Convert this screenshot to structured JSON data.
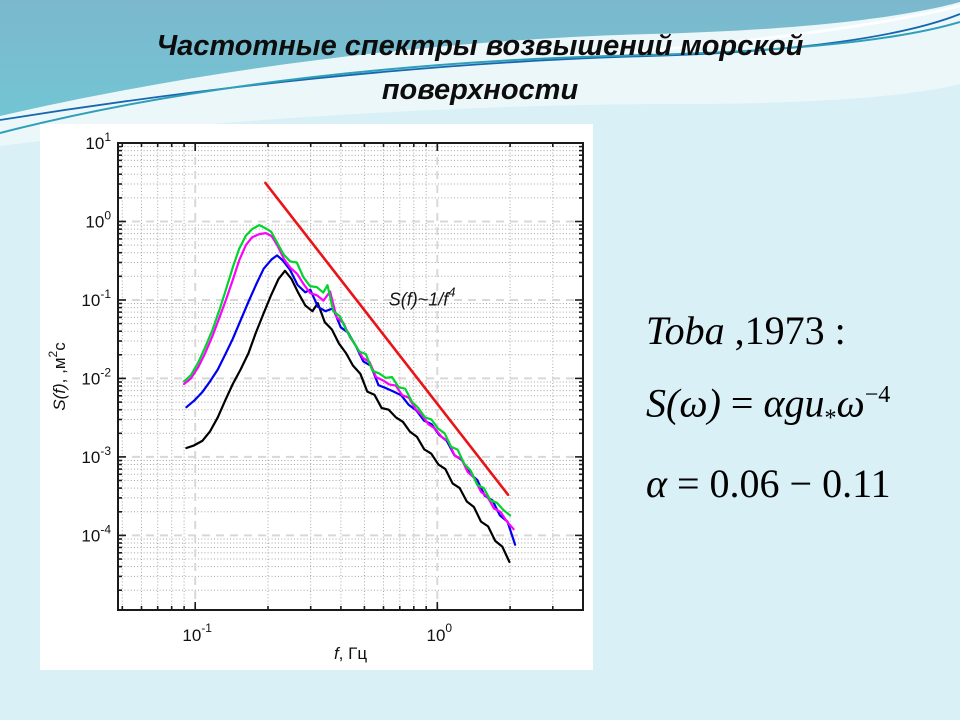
{
  "slide": {
    "title_line1": "Частотные спектры возвышений морской",
    "title_line2": "поверхности"
  },
  "formula": {
    "line1_it": "Toba",
    "line1_rest": " ,1973 :",
    "line2": {
      "lhs": "S(ω)",
      "eq": " = ",
      "coef": "αgu",
      "sub": "*",
      "base": "ω",
      "sup": "−4"
    },
    "line3": {
      "sym": "α",
      "rest": " = 0.06 − 0.11"
    }
  },
  "colors": {
    "body_background": "#d9f0f6",
    "header_teal_top": "#7cb8cd",
    "header_teal_bottom": "#6fc9d6",
    "wave_light": "#ecf7fa",
    "wave_line_teal": "#2f9fb9",
    "wave_line_blue": "#1767b0",
    "panel_background": "#ffffff",
    "grid_minor": "#a6a6a6",
    "grid_major": "#d8d8d8",
    "axis": "#1a1a1a",
    "text": "#111111"
  },
  "chart_data": {
    "type": "line",
    "log_x": true,
    "log_y": true,
    "grid": "major+minor",
    "legend": "none",
    "xlim": [
      0.048,
      4.0
    ],
    "ylim": [
      1.12e-05,
      10
    ],
    "x_tick_base": "10",
    "x_tick_exponents": [
      -1,
      0
    ],
    "y_tick_exponents": [
      1,
      0,
      -1,
      -2,
      -3,
      -4
    ],
    "xlabel": {
      "var": "f",
      "rest": ", Гц"
    },
    "ylabel": {
      "var": "S(f)",
      "sep": ", ,",
      "unit": "м",
      "sup": "2",
      "unit2": "c"
    },
    "annotation": {
      "text_main": "S(f)~1/f",
      "text_sup": "4",
      "x": 0.63,
      "y": 0.085
    },
    "series": [
      {
        "name": "spectrum-black",
        "color": "#000000",
        "width": 2.2,
        "points": [
          [
            0.092,
            0.0013
          ],
          [
            0.099,
            0.0014
          ],
          [
            0.107,
            0.0016
          ],
          [
            0.115,
            0.0021
          ],
          [
            0.124,
            0.0032
          ],
          [
            0.133,
            0.0052
          ],
          [
            0.143,
            0.0085
          ],
          [
            0.154,
            0.013
          ],
          [
            0.166,
            0.021
          ],
          [
            0.178,
            0.038
          ],
          [
            0.192,
            0.068
          ],
          [
            0.206,
            0.115
          ],
          [
            0.221,
            0.185
          ],
          [
            0.235,
            0.235
          ],
          [
            0.25,
            0.185
          ],
          [
            0.266,
            0.125
          ],
          [
            0.285,
            0.085
          ],
          [
            0.305,
            0.072
          ],
          [
            0.321,
            0.091
          ],
          [
            0.343,
            0.052
          ],
          [
            0.367,
            0.042
          ],
          [
            0.392,
            0.028
          ],
          [
            0.42,
            0.021
          ],
          [
            0.449,
            0.0145
          ],
          [
            0.481,
            0.0115
          ],
          [
            0.514,
            0.0068
          ],
          [
            0.55,
            0.0062
          ],
          [
            0.589,
            0.0042
          ],
          [
            0.63,
            0.004
          ],
          [
            0.674,
            0.0032
          ],
          [
            0.721,
            0.0028
          ],
          [
            0.771,
            0.0021
          ],
          [
            0.825,
            0.0018
          ],
          [
            0.883,
            0.00125
          ],
          [
            0.945,
            0.0011
          ],
          [
            1.011,
            0.0008
          ],
          [
            1.081,
            0.0007
          ],
          [
            1.157,
            0.00046
          ],
          [
            1.238,
            0.0004
          ],
          [
            1.324,
            0.00027
          ],
          [
            1.417,
            0.00023
          ],
          [
            1.516,
            0.00015
          ],
          [
            1.622,
            0.00013
          ],
          [
            1.735,
            8.5e-05
          ],
          [
            1.857,
            7.2e-05
          ],
          [
            1.987,
            4.6e-05
          ]
        ]
      },
      {
        "name": "spectrum-blue",
        "color": "#0000f0",
        "width": 2.2,
        "points": [
          [
            0.092,
            0.0043
          ],
          [
            0.099,
            0.0052
          ],
          [
            0.107,
            0.0067
          ],
          [
            0.115,
            0.0091
          ],
          [
            0.124,
            0.013
          ],
          [
            0.133,
            0.02
          ],
          [
            0.143,
            0.032
          ],
          [
            0.154,
            0.055
          ],
          [
            0.166,
            0.095
          ],
          [
            0.179,
            0.16
          ],
          [
            0.192,
            0.25
          ],
          [
            0.207,
            0.33
          ],
          [
            0.218,
            0.37
          ],
          [
            0.23,
            0.32
          ],
          [
            0.247,
            0.24
          ],
          [
            0.265,
            0.155
          ],
          [
            0.285,
            0.125
          ],
          [
            0.299,
            0.135
          ],
          [
            0.321,
            0.082
          ],
          [
            0.345,
            0.072
          ],
          [
            0.371,
            0.078
          ],
          [
            0.399,
            0.045
          ],
          [
            0.429,
            0.038
          ],
          [
            0.461,
            0.026
          ],
          [
            0.495,
            0.0165
          ],
          [
            0.532,
            0.0145
          ],
          [
            0.572,
            0.0082
          ],
          [
            0.615,
            0.0075
          ],
          [
            0.661,
            0.0068
          ],
          [
            0.71,
            0.0061
          ],
          [
            0.763,
            0.0046
          ],
          [
            0.82,
            0.0039
          ],
          [
            0.882,
            0.0029
          ],
          [
            0.948,
            0.0026
          ],
          [
            1.019,
            0.0019
          ],
          [
            1.095,
            0.0016
          ],
          [
            1.177,
            0.00105
          ],
          [
            1.265,
            0.00091
          ],
          [
            1.36,
            0.00062
          ],
          [
            1.462,
            0.00051
          ],
          [
            1.571,
            0.00032
          ],
          [
            1.689,
            0.00028
          ],
          [
            1.815,
            0.00018
          ],
          [
            1.951,
            0.00015
          ],
          [
            2.097,
            7.6e-05
          ]
        ]
      },
      {
        "name": "spectrum-magenta",
        "color": "#ff00ff",
        "width": 2.2,
        "points": [
          [
            0.09,
            0.0085
          ],
          [
            0.096,
            0.01
          ],
          [
            0.103,
            0.014
          ],
          [
            0.11,
            0.021
          ],
          [
            0.118,
            0.035
          ],
          [
            0.126,
            0.06
          ],
          [
            0.134,
            0.1
          ],
          [
            0.143,
            0.18
          ],
          [
            0.152,
            0.32
          ],
          [
            0.162,
            0.5
          ],
          [
            0.172,
            0.63
          ],
          [
            0.184,
            0.69
          ],
          [
            0.196,
            0.71
          ],
          [
            0.207,
            0.65
          ],
          [
            0.219,
            0.49
          ],
          [
            0.233,
            0.33
          ],
          [
            0.248,
            0.255
          ],
          [
            0.264,
            0.215
          ],
          [
            0.281,
            0.158
          ],
          [
            0.299,
            0.122
          ],
          [
            0.318,
            0.115
          ],
          [
            0.339,
            0.098
          ],
          [
            0.361,
            0.128
          ],
          [
            0.384,
            0.06
          ],
          [
            0.409,
            0.051
          ],
          [
            0.435,
            0.034
          ],
          [
            0.463,
            0.0255
          ],
          [
            0.493,
            0.0182
          ],
          [
            0.525,
            0.0162
          ],
          [
            0.559,
            0.0104
          ],
          [
            0.595,
            0.0095
          ],
          [
            0.633,
            0.0084
          ],
          [
            0.674,
            0.0081
          ],
          [
            0.717,
            0.0061
          ],
          [
            0.763,
            0.0057
          ],
          [
            0.812,
            0.0041
          ],
          [
            0.865,
            0.0034
          ],
          [
            0.92,
            0.0026
          ],
          [
            0.979,
            0.0023
          ],
          [
            1.042,
            0.0018
          ],
          [
            1.109,
            0.0016
          ],
          [
            1.18,
            0.00104
          ],
          [
            1.256,
            0.00095
          ],
          [
            1.337,
            0.00064
          ],
          [
            1.423,
            0.00054
          ],
          [
            1.514,
            0.00036
          ],
          [
            1.611,
            0.00031
          ],
          [
            1.715,
            0.00022
          ],
          [
            1.825,
            0.0002
          ],
          [
            1.942,
            0.00015
          ],
          [
            2.067,
            0.00012
          ]
        ]
      },
      {
        "name": "spectrum-green",
        "color": "#00d42d",
        "width": 2.2,
        "points": [
          [
            0.09,
            0.0092
          ],
          [
            0.096,
            0.011
          ],
          [
            0.103,
            0.016
          ],
          [
            0.11,
            0.025
          ],
          [
            0.118,
            0.042
          ],
          [
            0.126,
            0.075
          ],
          [
            0.134,
            0.135
          ],
          [
            0.143,
            0.26
          ],
          [
            0.152,
            0.45
          ],
          [
            0.162,
            0.66
          ],
          [
            0.172,
            0.8
          ],
          [
            0.184,
            0.9
          ],
          [
            0.195,
            0.82
          ],
          [
            0.206,
            0.74
          ],
          [
            0.218,
            0.54
          ],
          [
            0.232,
            0.38
          ],
          [
            0.247,
            0.31
          ],
          [
            0.263,
            0.3
          ],
          [
            0.28,
            0.195
          ],
          [
            0.298,
            0.15
          ],
          [
            0.318,
            0.146
          ],
          [
            0.338,
            0.124
          ],
          [
            0.352,
            0.154
          ],
          [
            0.372,
            0.072
          ],
          [
            0.396,
            0.062
          ],
          [
            0.421,
            0.041
          ],
          [
            0.448,
            0.03
          ],
          [
            0.477,
            0.022
          ],
          [
            0.507,
            0.0205
          ],
          [
            0.54,
            0.0125
          ],
          [
            0.575,
            0.0116
          ],
          [
            0.612,
            0.0102
          ],
          [
            0.651,
            0.0104
          ],
          [
            0.693,
            0.0077
          ],
          [
            0.737,
            0.0074
          ],
          [
            0.785,
            0.0051
          ],
          [
            0.835,
            0.0042
          ],
          [
            0.889,
            0.0032
          ],
          [
            0.946,
            0.003
          ],
          [
            1.007,
            0.0023
          ],
          [
            1.072,
            0.002
          ],
          [
            1.141,
            0.00135
          ],
          [
            1.214,
            0.00124
          ],
          [
            1.292,
            0.00082
          ],
          [
            1.375,
            0.00067
          ],
          [
            1.464,
            0.00044
          ],
          [
            1.558,
            0.0004
          ],
          [
            1.658,
            0.00028
          ],
          [
            1.765,
            0.00026
          ],
          [
            1.878,
            0.00021
          ],
          [
            1.999,
            0.00018
          ]
        ]
      },
      {
        "name": "reference-f-minus-4",
        "color": "#ea1318",
        "width": 2.6,
        "points": [
          [
            0.195,
            3.1
          ],
          [
            1.96,
            0.00033
          ]
        ]
      }
    ]
  }
}
